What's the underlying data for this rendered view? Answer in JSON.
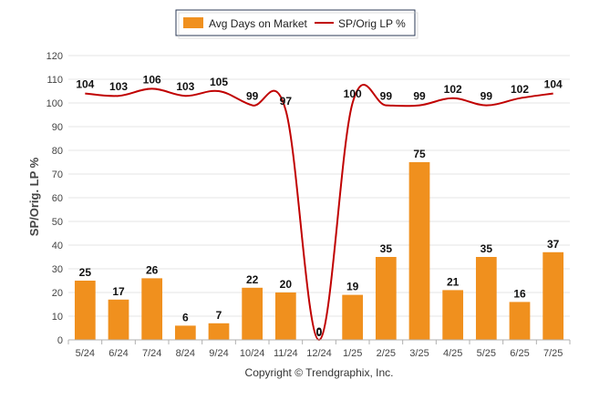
{
  "chart_data": {
    "type": "bar",
    "categories": [
      "5/24",
      "6/24",
      "7/24",
      "8/24",
      "9/24",
      "10/24",
      "11/24",
      "12/24",
      "1/25",
      "2/25",
      "3/25",
      "4/25",
      "5/25",
      "6/25",
      "7/25"
    ],
    "series": [
      {
        "name": "Avg Days on Market",
        "type": "bar",
        "color": "#f0901e",
        "values": [
          25,
          17,
          26,
          6,
          7,
          22,
          20,
          0,
          19,
          35,
          75,
          21,
          35,
          16,
          37
        ]
      },
      {
        "name": "SP/Orig LP %",
        "type": "line",
        "color": "#c00000",
        "values": [
          104,
          103,
          106,
          103,
          105,
          99,
          97,
          0,
          100,
          99,
          99,
          102,
          99,
          102,
          104
        ]
      }
    ],
    "ylabel": "SP/Orig. LP %",
    "xlabel": "",
    "ylim": [
      0,
      120
    ],
    "yticks": [
      0,
      10,
      20,
      30,
      40,
      50,
      60,
      70,
      80,
      90,
      100,
      110,
      120
    ],
    "grid": true,
    "legend": "top-center",
    "footer": "Copyright © Trendgraphix, Inc."
  }
}
